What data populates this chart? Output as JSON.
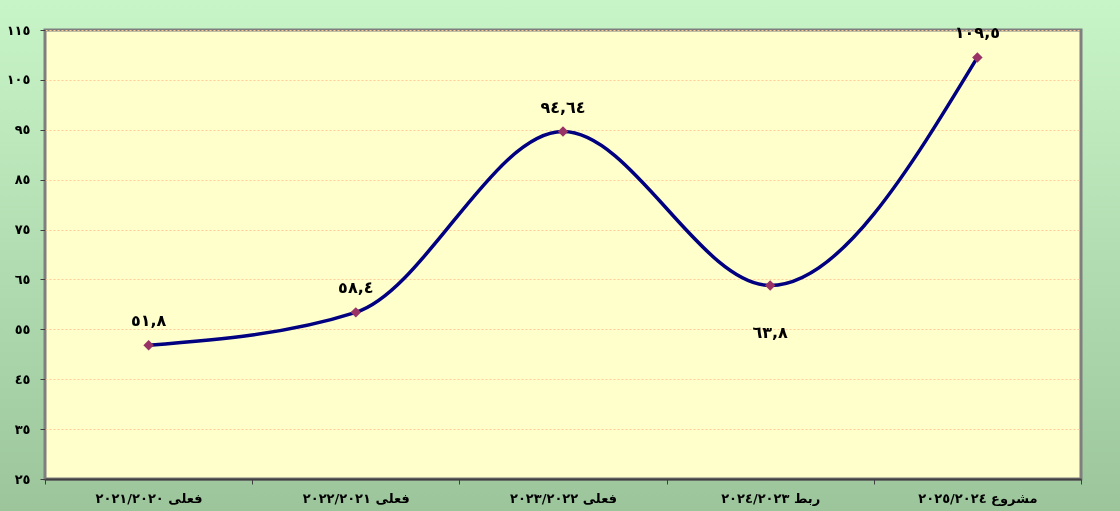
{
  "chart_data": {
    "type": "line",
    "categories": [
      "فعلى ٢٠٢١/٢٠٢٠",
      "فعلى ٢٠٢٢/٢٠٢١",
      "فعلى ٢٠٢٣/٢٠٢٢",
      "ربط ٢٠٢٤/٢٠٢٣",
      "مشروع ٢٠٢٥/٢٠٢٤"
    ],
    "series": [
      {
        "color": "#000080",
        "colors": [
          "#993366",
          "#993366",
          "#993366",
          "#993366",
          "#993366"
        ],
        "values": [
          51.8,
          58.4,
          94.64,
          63.8,
          109.5
        ]
      }
    ],
    "value_labels": [
      "٥١,٨",
      "٥٨,٤",
      "٩٤,٦٤",
      "٦٣,٨",
      "١٠٩,٥"
    ],
    "marker": "diamond",
    "grid": "y",
    "ylim": [
      25,
      115
    ],
    "yticks": [
      {
        "value": 25,
        "label": "٢٥"
      },
      {
        "value": 35,
        "label": "٣٥"
      },
      {
        "value": 45,
        "label": "٤٥"
      },
      {
        "value": 55,
        "label": "٥٥"
      },
      {
        "value": 65,
        "label": "٦٥"
      },
      {
        "value": 75,
        "label": "٧٥"
      },
      {
        "value": 85,
        "label": "٨٥"
      },
      {
        "value": 95,
        "label": "٩٥"
      },
      {
        "value": 105,
        "label": "١٠٥"
      },
      {
        "value": 115,
        "label": "١١٥"
      }
    ]
  }
}
